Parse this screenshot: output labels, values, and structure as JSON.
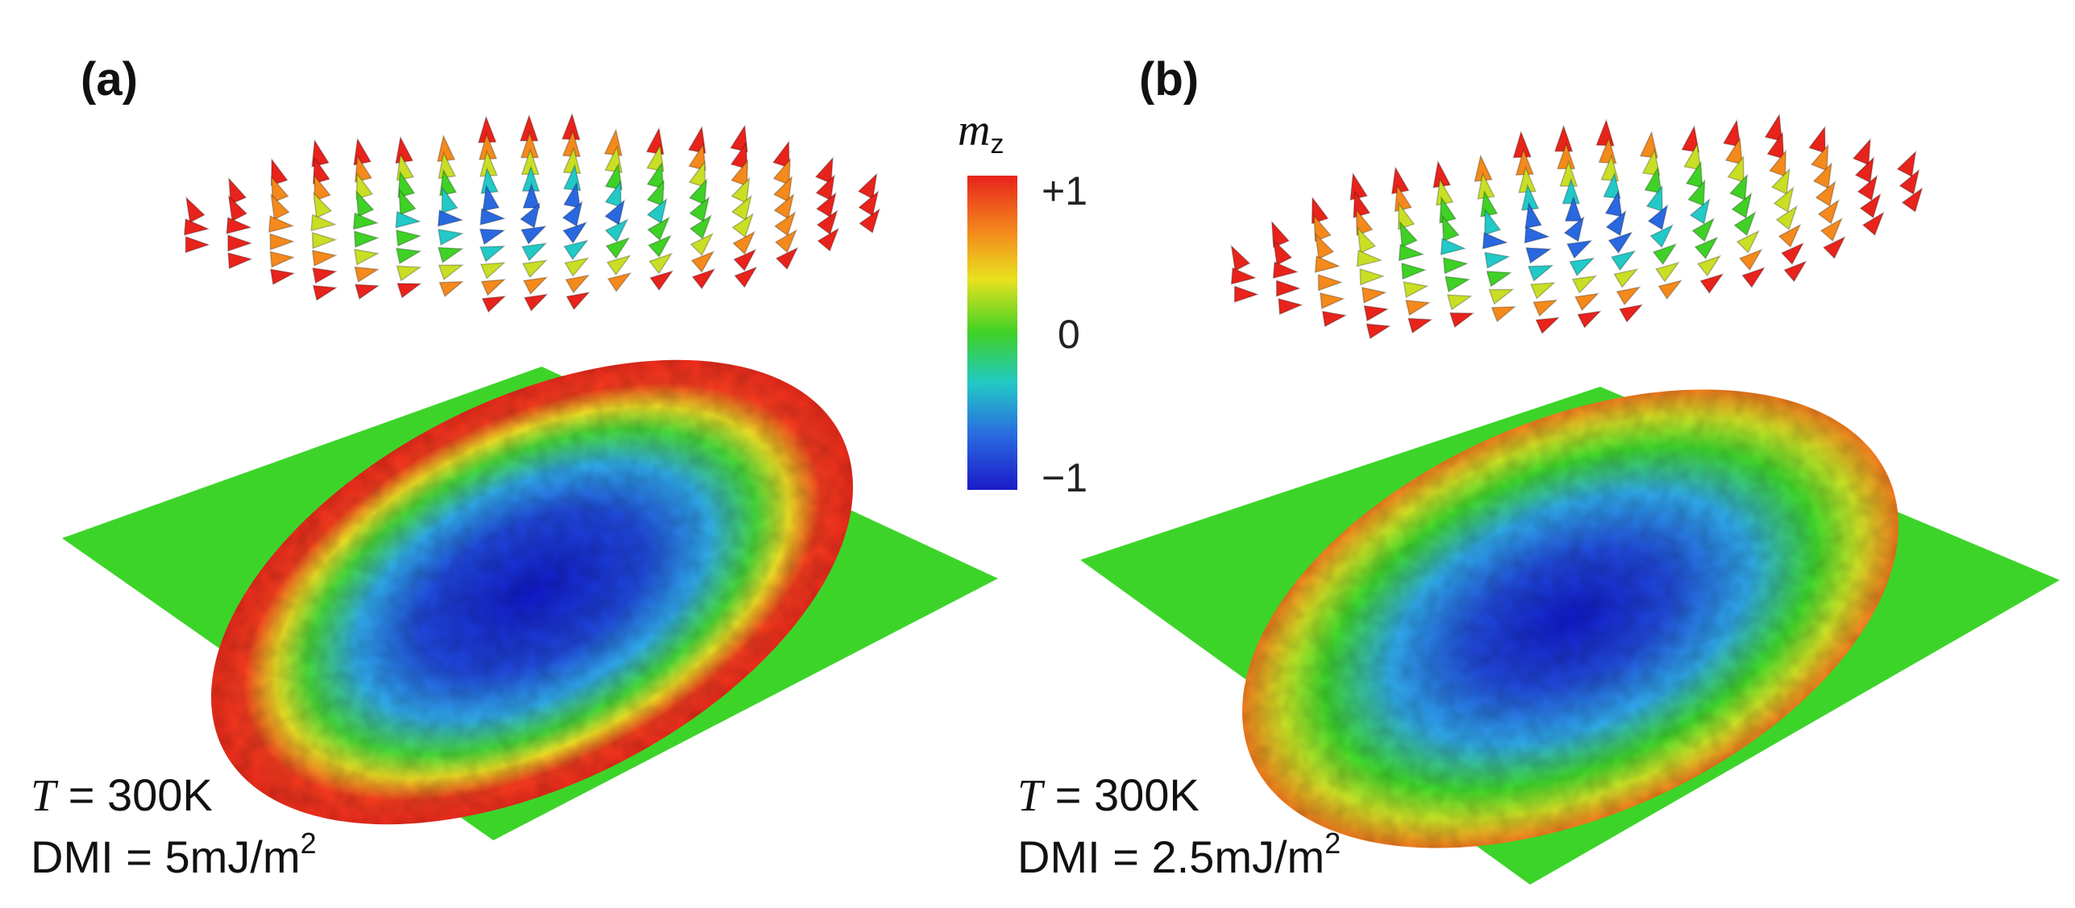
{
  "panels": [
    {
      "label": "(a)",
      "temperature_symbol": "T",
      "temperature_value": " = 300K",
      "dmi_text": "DMI = 5mJ/m",
      "dmi_superscript": "2"
    },
    {
      "label": "(b)",
      "temperature_symbol": "T",
      "temperature_value": " = 300K",
      "dmi_text": "DMI = 2.5mJ/m",
      "dmi_superscript": "2"
    }
  ],
  "colorbar": {
    "title_main": "m",
    "title_sub": "z",
    "ticks": [
      "+1",
      "0",
      "−1"
    ],
    "colors": [
      "#e8231c",
      "#f7a21b",
      "#e8e21e",
      "#3fd126",
      "#22c9c6",
      "#2a68e0",
      "#1a1bc8"
    ]
  },
  "colors": {
    "plane_background": "#3dd42a",
    "core": "#1a2fd0",
    "inner": "#2fa7e3",
    "mid": "#45d43a",
    "rim": "#e8361f"
  }
}
